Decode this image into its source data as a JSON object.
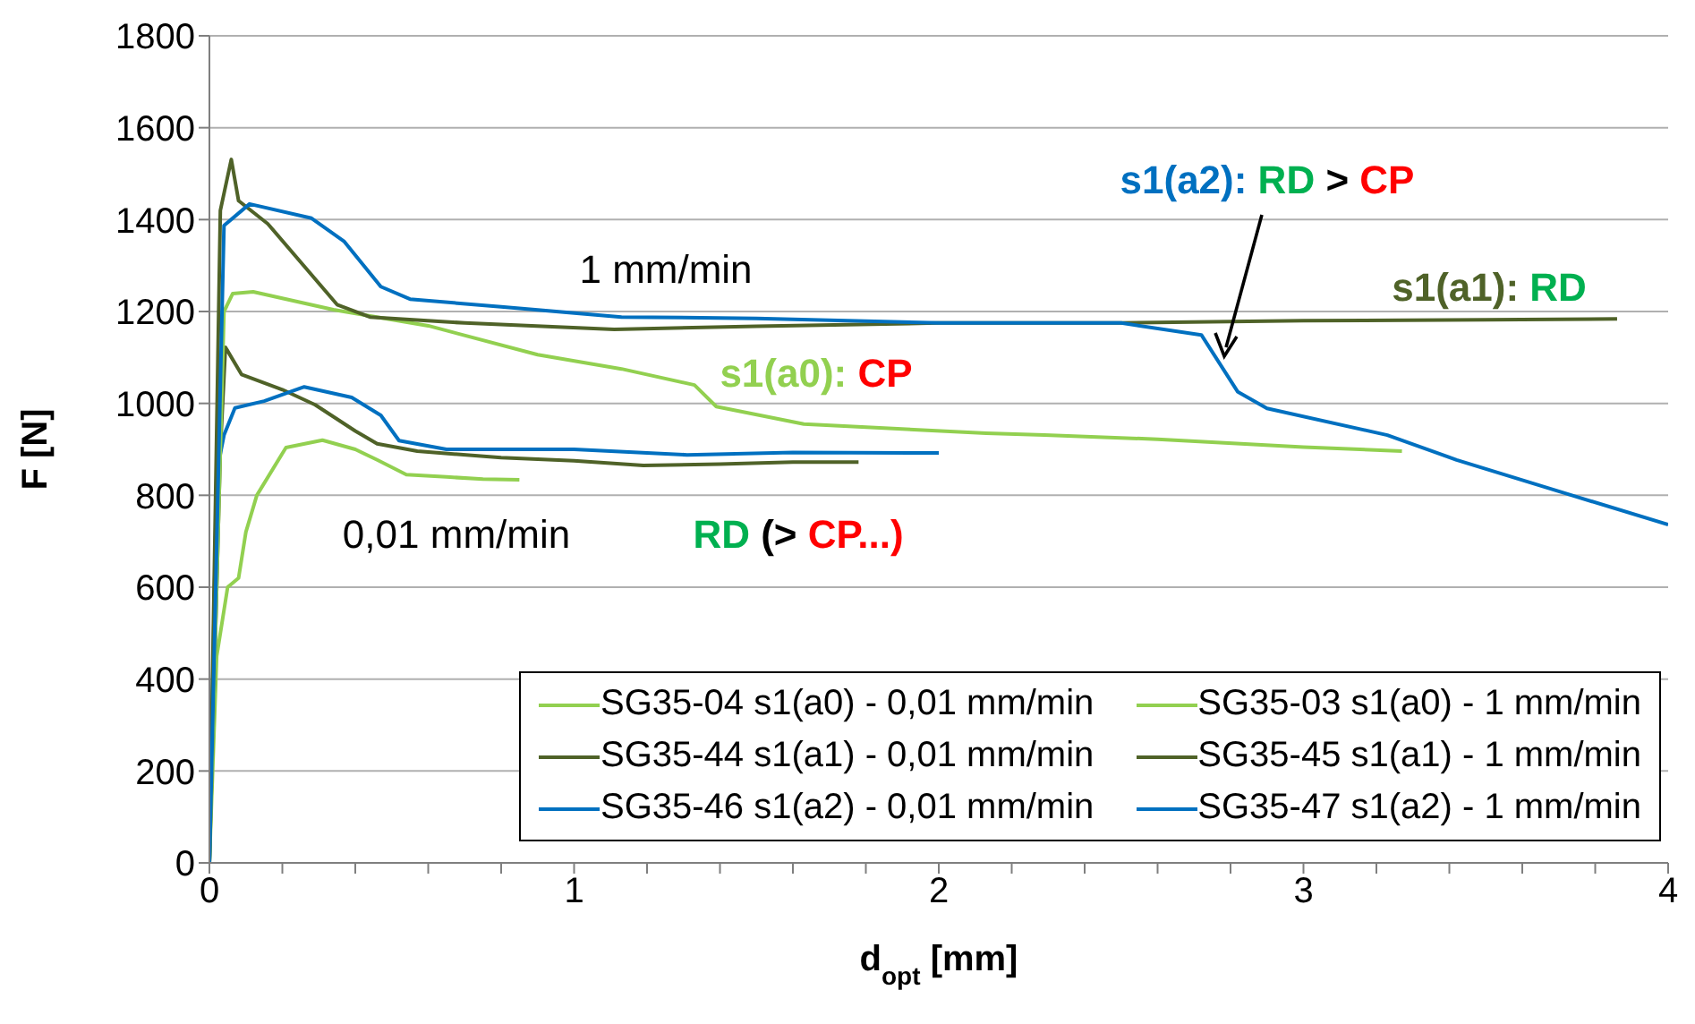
{
  "chart_data": {
    "type": "line",
    "xlabel": "d$_{opt}$ [mm]",
    "ylabel": "F [N]",
    "xlim": [
      0,
      4
    ],
    "ylim": [
      0,
      1800
    ],
    "xticks": [
      0,
      {
        "value": 0.2,
        "label": null
      },
      {
        "value": 0.4,
        "label": null
      },
      {
        "value": 0.6,
        "label": null
      },
      {
        "value": 0.8,
        "label": null
      },
      1,
      {
        "value": 1.2,
        "label": null
      },
      {
        "value": 1.4,
        "label": null
      },
      {
        "value": 1.6,
        "label": null
      },
      {
        "value": 1.8,
        "label": null
      },
      2,
      {
        "value": 2.2,
        "label": null
      },
      {
        "value": 2.4,
        "label": null
      },
      {
        "value": 2.6,
        "label": null
      },
      {
        "value": 2.8,
        "label": null
      },
      3,
      {
        "value": 3.2,
        "label": null
      },
      {
        "value": 3.4,
        "label": null
      },
      {
        "value": 3.6,
        "label": null
      },
      {
        "value": 3.8,
        "label": null
      },
      4
    ],
    "yticks": [
      0,
      200,
      400,
      600,
      800,
      1000,
      1200,
      1400,
      1600,
      1800
    ],
    "grid": "y",
    "legend": "bottom right",
    "marker": "none",
    "line_style": "solid",
    "series": [
      {
        "name": "SG35-04 s1(a0) - 0,01 mm/min",
        "color": "#92d050",
        "x": [
          0,
          0.02,
          0.05,
          0.08,
          0.1,
          0.13,
          0.21,
          0.31,
          0.4,
          0.46,
          0.54,
          0.65,
          0.75,
          0.85
        ],
        "values": [
          0,
          450,
          600,
          620,
          720,
          800,
          904,
          920,
          900,
          877,
          845,
          840,
          835,
          834
        ]
      },
      {
        "name": "SG35-44 s1(a1) - 0,01 mm/min",
        "color": "#4f6228",
        "x": [
          0,
          0.03,
          0.044,
          0.088,
          0.2,
          0.29,
          0.4,
          0.46,
          0.57,
          0.8,
          1.0,
          1.19,
          1.4,
          1.6,
          1.78
        ],
        "values": [
          0,
          900,
          1122,
          1063,
          1030,
          997,
          940,
          912,
          896,
          882,
          875,
          865,
          868,
          872,
          872
        ]
      },
      {
        "name": "SG35-46 s1(a2) - 0,01 mm/min",
        "color": "#0070c0",
        "x": [
          0,
          0.02,
          0.04,
          0.07,
          0.15,
          0.26,
          0.39,
          0.47,
          0.52,
          0.65,
          1.0,
          1.31,
          1.6,
          2.0
        ],
        "values": [
          0,
          850,
          931,
          990,
          1005,
          1036,
          1013,
          974,
          919,
          900,
          900,
          888,
          893,
          892
        ]
      },
      {
        "name": "SG35-03 s1(a0) - 1 mm/min",
        "color": "#92d050",
        "x": [
          0,
          0.04,
          0.064,
          0.12,
          0.34,
          0.6,
          0.9,
          1.13,
          1.33,
          1.39,
          1.63,
          2.13,
          2.29,
          2.6,
          3.0,
          3.27
        ],
        "values": [
          0,
          1200,
          1239,
          1243,
          1204,
          1169,
          1106,
          1075,
          1040,
          993,
          955,
          935,
          931,
          922,
          905,
          896
        ]
      },
      {
        "name": "SG35-45 s1(a1) - 1 mm/min",
        "color": "#4f6228",
        "x": [
          0,
          0.03,
          0.06,
          0.08,
          0.16,
          0.35,
          0.44,
          0.7,
          1.11,
          1.5,
          2.0,
          2.5,
          3.0,
          3.5,
          3.86
        ],
        "values": [
          0,
          1420,
          1531,
          1441,
          1391,
          1215,
          1188,
          1175,
          1161,
          1168,
          1175,
          1175,
          1180,
          1182,
          1184
        ]
      },
      {
        "name": "SG35-47 s1(a2) - 1 mm/min",
        "color": "#0070c0",
        "x": [
          0,
          0.04,
          0.11,
          0.28,
          0.37,
          0.47,
          0.55,
          0.8,
          1.13,
          1.5,
          2.0,
          2.5,
          2.72,
          2.82,
          2.9,
          3.23,
          3.42,
          3.74,
          4.0
        ],
        "values": [
          0,
          1387,
          1434,
          1403,
          1352,
          1254,
          1227,
          1210,
          1188,
          1185,
          1175,
          1175,
          1149,
          1025,
          989,
          931,
          877,
          799,
          736
        ]
      }
    ],
    "annotations": [
      "1 mm/min",
      "0,01 mm/min",
      "s1(a0): CP",
      "RD (> CP...)",
      "s1(a2): RD > CP",
      "s1(a1): RD"
    ]
  }
}
